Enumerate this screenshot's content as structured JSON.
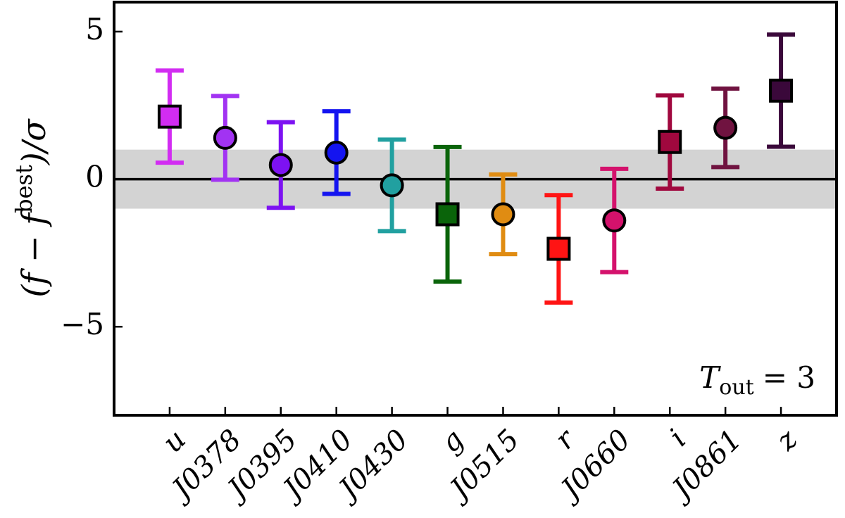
{
  "chart_data": {
    "type": "errorbar",
    "y_label": {
      "prefix": "(f − f",
      "superscript": "best",
      "suffix": ")/σ"
    },
    "annotation": {
      "symbol": "T",
      "subscript": "out",
      "text": "= 3"
    },
    "categories": [
      "u",
      "J0378",
      "J0395",
      "J0410",
      "J0430",
      "g",
      "J0515",
      "r",
      "J0660",
      "i",
      "J0861",
      "z"
    ],
    "values": [
      2.12,
      1.4,
      0.48,
      0.9,
      -0.21,
      -1.19,
      -1.19,
      -2.36,
      -1.4,
      1.26,
      1.74,
      3.0
    ],
    "errors": [
      1.56,
      1.42,
      1.45,
      1.4,
      1.55,
      2.28,
      1.35,
      1.82,
      1.75,
      1.58,
      1.33,
      1.9
    ],
    "colors": [
      "#d22cf2",
      "#a233f2",
      "#7d12f2",
      "#1414f0",
      "#21a0a0",
      "#0a640a",
      "#e08c12",
      "#ff1414",
      "#d4126c",
      "#a0083e",
      "#701340",
      "#3a083a"
    ],
    "markers": [
      "square",
      "circle",
      "circle",
      "circle",
      "circle",
      "square",
      "circle",
      "square",
      "circle",
      "square",
      "circle",
      "square"
    ],
    "ylim": [
      -8,
      6
    ],
    "yticks": [
      {
        "value": -5,
        "label": "−5"
      },
      0,
      5
    ],
    "reference_line": 0,
    "shaded_band": {
      "lower": -1,
      "upper": 1
    }
  }
}
